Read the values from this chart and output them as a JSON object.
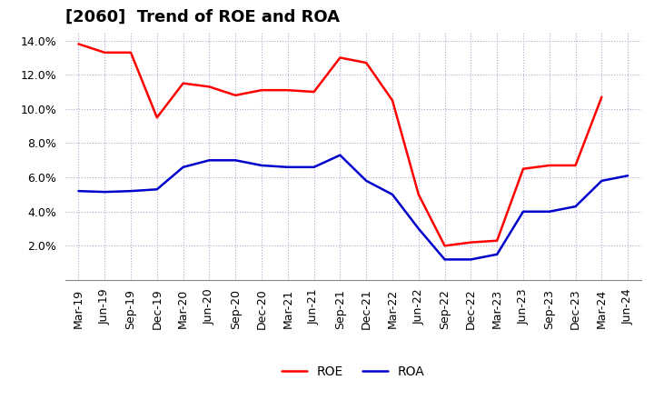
{
  "title": "[2060]  Trend of ROE and ROA",
  "labels": [
    "Mar-19",
    "Jun-19",
    "Sep-19",
    "Dec-19",
    "Mar-20",
    "Jun-20",
    "Sep-20",
    "Dec-20",
    "Mar-21",
    "Jun-21",
    "Sep-21",
    "Dec-21",
    "Mar-22",
    "Jun-22",
    "Sep-22",
    "Dec-22",
    "Mar-23",
    "Jun-23",
    "Sep-23",
    "Dec-23",
    "Mar-24",
    "Jun-24"
  ],
  "ROE": [
    13.8,
    13.3,
    13.3,
    9.5,
    11.5,
    11.3,
    10.8,
    11.1,
    11.1,
    11.0,
    13.0,
    12.7,
    10.5,
    5.0,
    2.0,
    2.2,
    2.3,
    6.5,
    6.7,
    6.7,
    10.7,
    null
  ],
  "ROA": [
    5.2,
    5.15,
    5.2,
    5.3,
    6.6,
    7.0,
    7.0,
    6.7,
    6.6,
    6.6,
    7.3,
    5.8,
    5.0,
    3.0,
    1.2,
    1.2,
    1.5,
    4.0,
    4.0,
    4.3,
    5.8,
    6.1
  ],
  "ROE_color": "#ff0000",
  "ROA_color": "#0000cd",
  "background_color": "#ffffff",
  "grid_color": "#aaaacc",
  "ylim_min": 0.0,
  "ylim_max": 14.5,
  "ytick_min": 2.0,
  "ytick_max": 14.0,
  "ytick_step": 2.0,
  "title_fontsize": 13,
  "tick_fontsize": 9,
  "line_width": 1.8,
  "legend_fontsize": 10
}
